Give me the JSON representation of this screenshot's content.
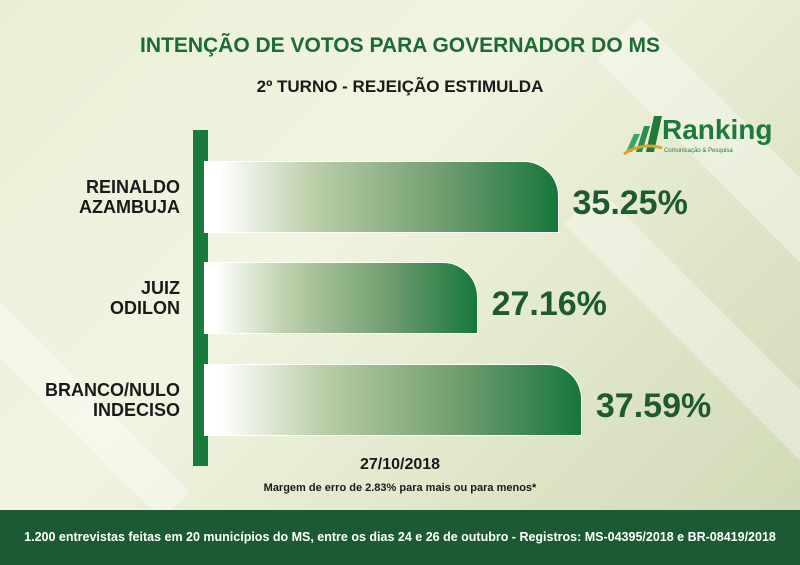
{
  "title": "INTENÇÃO DE VOTOS PARA GOVERNADOR DO MS",
  "subtitle": "2º TURNO - REJEIÇÃO ESTIMULDA",
  "logo": {
    "name": "Ranking",
    "tagline": "Comunicação & Pesquisa"
  },
  "colors": {
    "brand": "#1a7a3c",
    "footer": "#1c5a33"
  },
  "chart_data": {
    "type": "bar",
    "orientation": "horizontal",
    "categories": [
      [
        "REINALDO",
        "AZAMBUJA"
      ],
      [
        "JUIZ",
        "ODILON"
      ],
      [
        "BRANCO/NULO",
        "INDECISO"
      ]
    ],
    "values": [
      35.25,
      27.16,
      37.59
    ],
    "labels": [
      "35.25%",
      "27.16%",
      "37.59%"
    ],
    "grid": false
  },
  "date": "27/10/2018",
  "margin_note": "Margem de erro de 2.83% para mais ou para menos*",
  "footer": "1.200 entrevistas feitas em 20 municípios do MS, entre os dias 24 e 26 de outubro - Registros: MS-04395/2018 e BR-08419/2018"
}
